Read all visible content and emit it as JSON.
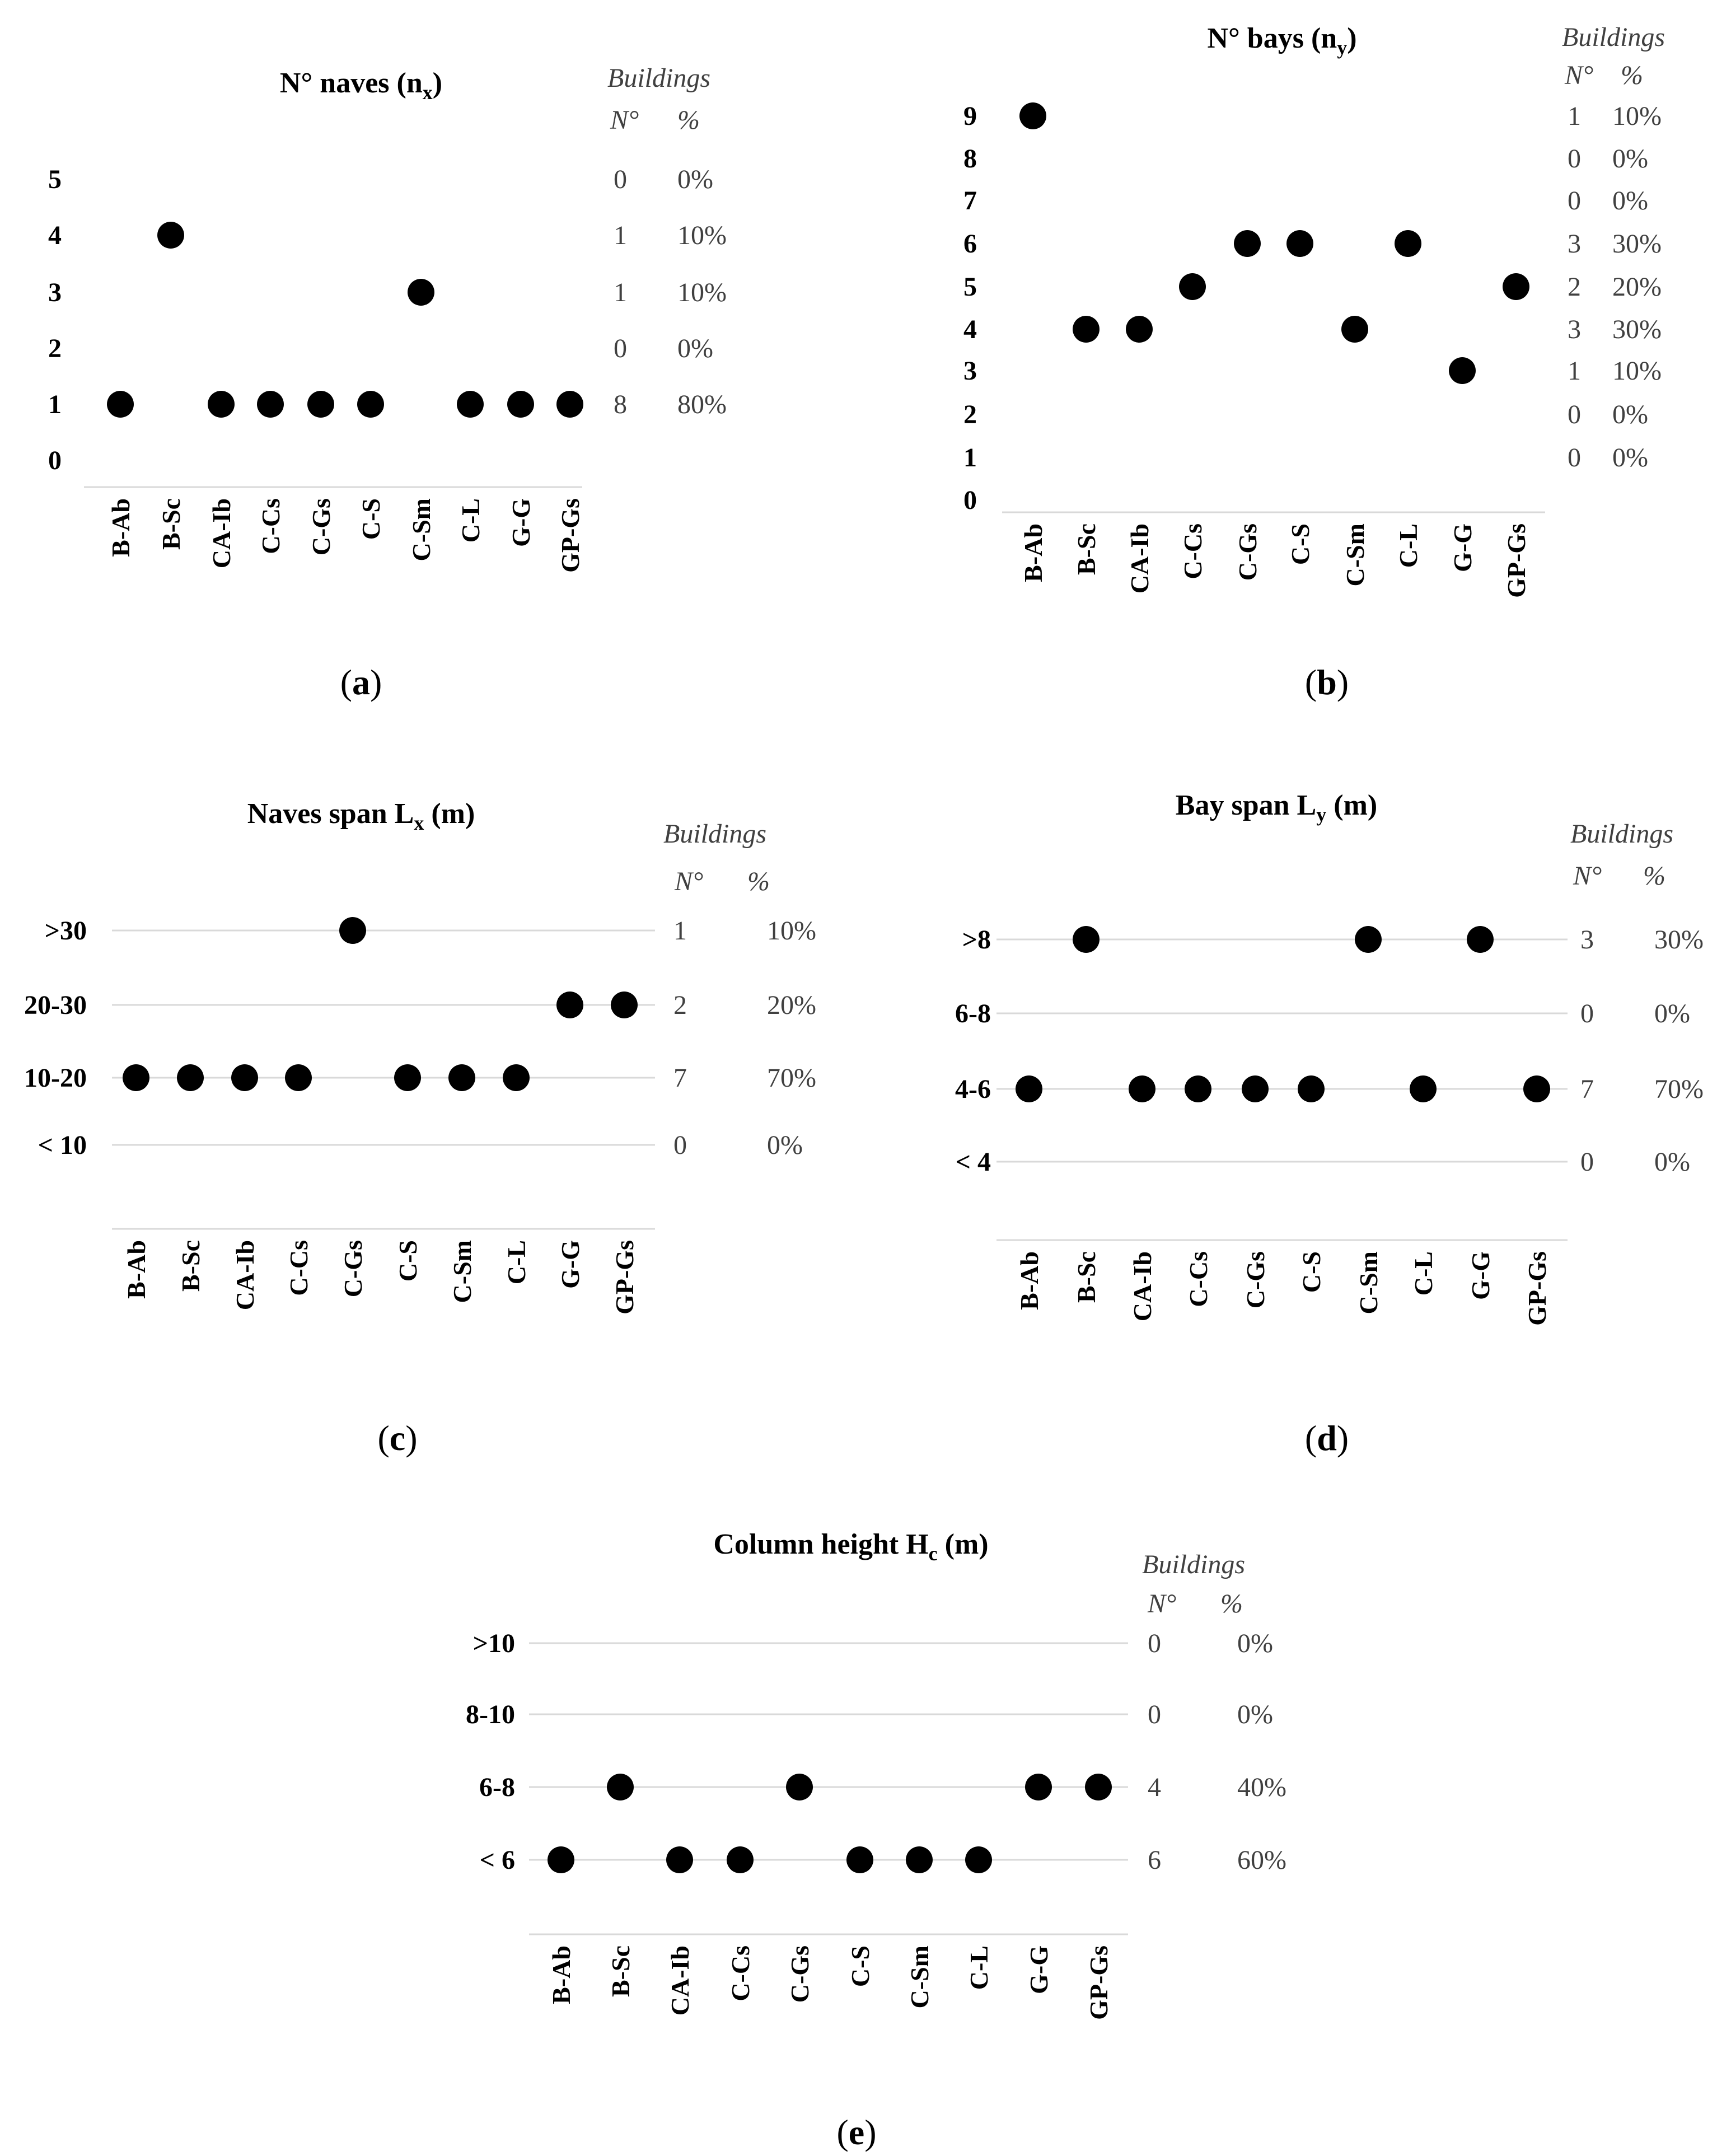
{
  "figure_captions": [
    "(a)",
    "(b)",
    "(c)",
    "(d)",
    "(e)"
  ],
  "chart_data": [
    {
      "id": "a",
      "type": "scatter",
      "title": "N° naves (n",
      "title_subscript": "x",
      "title_suffix": ")",
      "caption_letter": "a",
      "categories": [
        "B-Ab",
        "B-Sc",
        "CA-Ib",
        "C-Cs",
        "C-Gs",
        "C-S",
        "C-Sm",
        "C-L",
        "G-G",
        "GP-Gs"
      ],
      "y_labels": [
        "0",
        "1",
        "2",
        "3",
        "4",
        "5"
      ],
      "values": [
        1,
        4,
        1,
        1,
        1,
        1,
        3,
        1,
        1,
        1
      ],
      "grid": false,
      "buildings_header": "Buildings",
      "n_header": "N°",
      "pct_header": "%",
      "counts": [
        {
          "level": 5,
          "n": "0",
          "pct": "0%"
        },
        {
          "level": 4,
          "n": "1",
          "pct": "10%"
        },
        {
          "level": 3,
          "n": "1",
          "pct": "10%"
        },
        {
          "level": 2,
          "n": "0",
          "pct": "0%"
        },
        {
          "level": 1,
          "n": "8",
          "pct": "80%"
        }
      ],
      "marker_color": "#000000"
    },
    {
      "id": "b",
      "type": "scatter",
      "title": "N° bays (n",
      "title_subscript": "y",
      "title_suffix": ")",
      "caption_letter": "b",
      "categories": [
        "B-Ab",
        "B-Sc",
        "CA-Ib",
        "C-Cs",
        "C-Gs",
        "C-S",
        "C-Sm",
        "C-L",
        "G-G",
        "GP-Gs"
      ],
      "y_labels": [
        "0",
        "1",
        "2",
        "3",
        "4",
        "5",
        "6",
        "7",
        "8",
        "9"
      ],
      "values": [
        9,
        4,
        4,
        5,
        6,
        6,
        4,
        6,
        3,
        5
      ],
      "grid": false,
      "buildings_header": "Buildings",
      "n_header": "N°",
      "pct_header": "%",
      "counts": [
        {
          "level": 9,
          "n": "1",
          "pct": "10%"
        },
        {
          "level": 8,
          "n": "0",
          "pct": "0%"
        },
        {
          "level": 7,
          "n": "0",
          "pct": "0%"
        },
        {
          "level": 6,
          "n": "3",
          "pct": "30%"
        },
        {
          "level": 5,
          "n": "2",
          "pct": "20%"
        },
        {
          "level": 4,
          "n": "3",
          "pct": "30%"
        },
        {
          "level": 3,
          "n": "1",
          "pct": "10%"
        },
        {
          "level": 2,
          "n": "0",
          "pct": "0%"
        },
        {
          "level": 1,
          "n": "0",
          "pct": "0%"
        }
      ],
      "marker_color": "#000000"
    },
    {
      "id": "c",
      "type": "scatter",
      "title": "Naves span L",
      "title_subscript": "x",
      "title_suffix": " (m)",
      "caption_letter": "c",
      "categories": [
        "B-Ab",
        "B-Sc",
        "CA-Ib",
        "C-Cs",
        "C-Gs",
        "C-S",
        "C-Sm",
        "C-L",
        "G-G",
        "GP-Gs"
      ],
      "y_labels": [
        "< 10",
        "10-20",
        "20-30",
        ">30"
      ],
      "values": [
        "10-20",
        "10-20",
        "10-20",
        "10-20",
        ">30",
        "10-20",
        "10-20",
        "10-20",
        "20-30",
        "20-30"
      ],
      "grid": true,
      "buildings_header": "Buildings",
      "n_header": "N°",
      "pct_header": "%",
      "counts": [
        {
          "level": ">30",
          "n": "1",
          "pct": "10%"
        },
        {
          "level": "20-30",
          "n": "2",
          "pct": "20%"
        },
        {
          "level": "10-20",
          "n": "7",
          "pct": "70%"
        },
        {
          "level": "< 10",
          "n": "0",
          "pct": "0%"
        }
      ],
      "marker_color": "#000000"
    },
    {
      "id": "d",
      "type": "scatter",
      "title": "Bay span L",
      "title_subscript": "y",
      "title_suffix": " (m)",
      "caption_letter": "d",
      "categories": [
        "B-Ab",
        "B-Sc",
        "CA-Ib",
        "C-Cs",
        "C-Gs",
        "C-S",
        "C-Sm",
        "C-L",
        "G-G",
        "GP-Gs"
      ],
      "y_labels": [
        "< 4",
        "4-6",
        "6-8",
        ">8"
      ],
      "values": [
        "4-6",
        ">8",
        "4-6",
        "4-6",
        "4-6",
        "4-6",
        ">8",
        "4-6",
        ">8",
        "4-6"
      ],
      "grid": true,
      "buildings_header": "Buildings",
      "n_header": "N°",
      "pct_header": "%",
      "counts": [
        {
          "level": ">8",
          "n": "3",
          "pct": "30%"
        },
        {
          "level": "6-8",
          "n": "0",
          "pct": "0%"
        },
        {
          "level": "4-6",
          "n": "7",
          "pct": "70%"
        },
        {
          "level": "< 4",
          "n": "0",
          "pct": "0%"
        }
      ],
      "marker_color": "#000000"
    },
    {
      "id": "e",
      "type": "scatter",
      "title": "Column height H",
      "title_subscript": "c",
      "title_suffix": " (m)",
      "caption_letter": "e",
      "categories": [
        "B-Ab",
        "B-Sc",
        "CA-Ib",
        "C-Cs",
        "C-Gs",
        "C-S",
        "C-Sm",
        "C-L",
        "G-G",
        "GP-Gs"
      ],
      "y_labels": [
        "< 6",
        "6-8",
        "8-10",
        ">10"
      ],
      "values": [
        "< 6",
        "6-8",
        "< 6",
        "< 6",
        "6-8",
        "< 6",
        "< 6",
        "< 6",
        "6-8",
        "6-8"
      ],
      "grid": true,
      "buildings_header": "Buildings",
      "n_header": "N°",
      "pct_header": "%",
      "counts": [
        {
          "level": ">10",
          "n": "0",
          "pct": "0%"
        },
        {
          "level": "8-10",
          "n": "0",
          "pct": "0%"
        },
        {
          "level": "6-8",
          "n": "4",
          "pct": "40%"
        },
        {
          "level": "< 6",
          "n": "6",
          "pct": "60%"
        }
      ],
      "marker_color": "#000000"
    }
  ]
}
